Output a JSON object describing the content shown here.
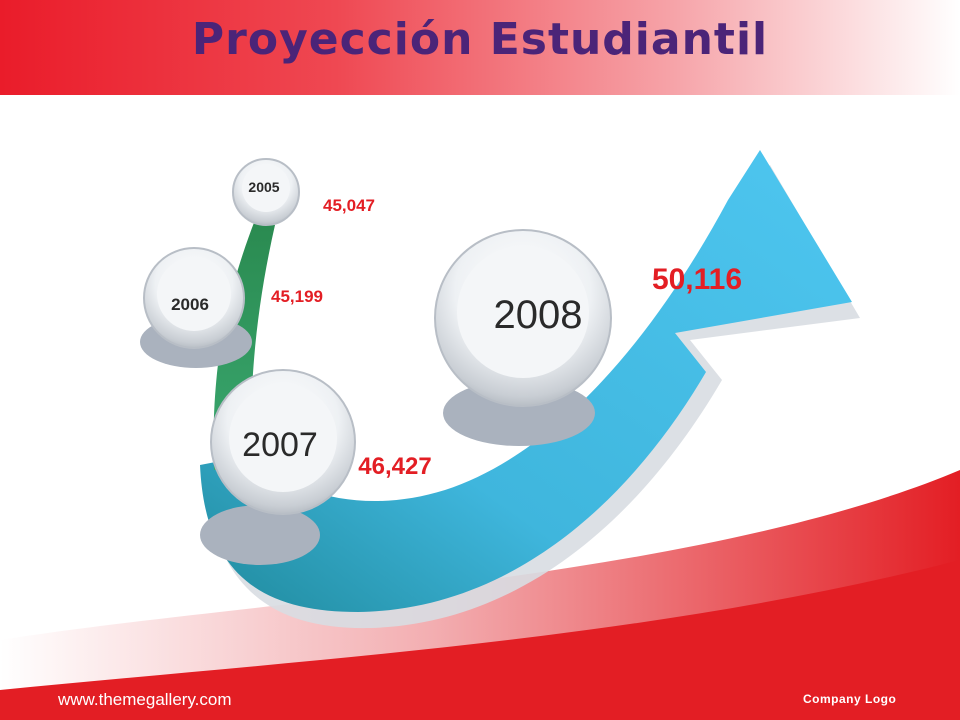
{
  "slide": {
    "title": "Proyección Estudiantil",
    "footer_url": "www.themegallery.com",
    "footer_logo": "Company Logo"
  },
  "colors": {
    "title": "#4b2478",
    "value_text": "#e31e24",
    "arrow_light": "#45c0ec",
    "arrow_dark": "#2a8fa5",
    "stem_green": "#2e9e63",
    "header_red": "#ea1c2a"
  },
  "milestones": [
    {
      "year": "2005",
      "value": "45,047"
    },
    {
      "year": "2006",
      "value": "45,199"
    },
    {
      "year": "2007",
      "value": "46,427"
    },
    {
      "year": "2008",
      "value": "50,116"
    }
  ]
}
